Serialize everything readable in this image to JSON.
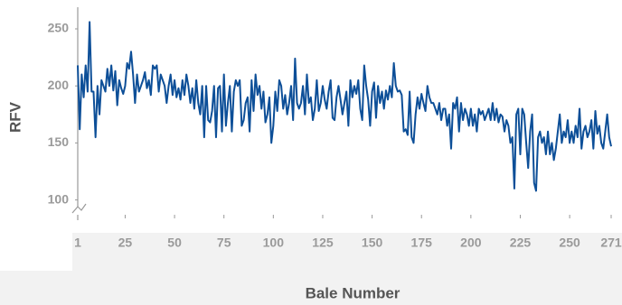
{
  "chart_data": {
    "type": "line",
    "x_label": "Bale Number",
    "y_label": "RFV",
    "xlim": [
      1,
      271
    ],
    "xticks": [
      1,
      25,
      50,
      75,
      100,
      125,
      150,
      175,
      200,
      225,
      250,
      271
    ],
    "ylim": [
      87,
      269
    ],
    "yticks": [
      100,
      150,
      200,
      250
    ],
    "color": "#0d4f98",
    "x": [
      1,
      2,
      3,
      4,
      5,
      6,
      7,
      8,
      9,
      10,
      11,
      12,
      13,
      14,
      15,
      16,
      17,
      18,
      19,
      20,
      21,
      22,
      23,
      24,
      25,
      26,
      27,
      28,
      29,
      30,
      31,
      32,
      33,
      34,
      35,
      36,
      37,
      38,
      39,
      40,
      41,
      42,
      43,
      44,
      45,
      46,
      47,
      48,
      49,
      50,
      51,
      52,
      53,
      54,
      55,
      56,
      57,
      58,
      59,
      60,
      61,
      62,
      63,
      64,
      65,
      66,
      67,
      68,
      69,
      70,
      71,
      72,
      73,
      74,
      75,
      76,
      77,
      78,
      79,
      80,
      81,
      82,
      83,
      84,
      85,
      86,
      87,
      88,
      89,
      90,
      91,
      92,
      93,
      94,
      95,
      96,
      97,
      98,
      99,
      100,
      101,
      102,
      103,
      104,
      105,
      106,
      107,
      108,
      109,
      110,
      111,
      112,
      113,
      114,
      115,
      116,
      117,
      118,
      119,
      120,
      121,
      122,
      123,
      124,
      125,
      126,
      127,
      128,
      129,
      130,
      131,
      132,
      133,
      134,
      135,
      136,
      137,
      138,
      139,
      140,
      141,
      142,
      143,
      144,
      145,
      146,
      147,
      148,
      149,
      150,
      151,
      152,
      153,
      154,
      155,
      156,
      157,
      158,
      159,
      160,
      161,
      162,
      163,
      164,
      165,
      166,
      167,
      168,
      169,
      170,
      171,
      172,
      173,
      174,
      175,
      176,
      177,
      178,
      179,
      180,
      181,
      182,
      183,
      184,
      185,
      186,
      187,
      188,
      189,
      190,
      191,
      192,
      193,
      194,
      195,
      196,
      197,
      198,
      199,
      200,
      201,
      202,
      203,
      204,
      205,
      206,
      207,
      208,
      209,
      210,
      211,
      212,
      213,
      214,
      215,
      216,
      217,
      218,
      219,
      220,
      221,
      222,
      223,
      224,
      225,
      226,
      227,
      228,
      229,
      230,
      231,
      232,
      233,
      234,
      235,
      236,
      237,
      238,
      239,
      240,
      241,
      242,
      243,
      244,
      245,
      246,
      247,
      248,
      249,
      250,
      251,
      252,
      253,
      254,
      255,
      256,
      257,
      258,
      259,
      260,
      261,
      262,
      263,
      264,
      265,
      266,
      267,
      268,
      269,
      270,
      271
    ],
    "values": [
      218,
      162,
      210,
      190,
      218,
      195,
      256,
      195,
      195,
      155,
      200,
      175,
      205,
      200,
      195,
      215,
      200,
      218,
      196,
      213,
      183,
      205,
      198,
      193,
      200,
      220,
      215,
      230,
      210,
      185,
      210,
      195,
      200,
      205,
      212,
      198,
      205,
      192,
      218,
      215,
      218,
      195,
      210,
      205,
      200,
      185,
      200,
      210,
      192,
      205,
      190,
      198,
      188,
      205,
      192,
      210,
      200,
      185,
      198,
      180,
      205,
      185,
      175,
      200,
      155,
      200,
      170,
      168,
      178,
      200,
      155,
      198,
      200,
      160,
      210,
      165,
      185,
      200,
      160,
      195,
      205,
      200,
      205,
      165,
      170,
      185,
      190,
      160,
      205,
      178,
      210,
      192,
      200,
      180,
      195,
      168,
      175,
      190,
      150,
      165,
      195,
      178,
      205,
      200,
      180,
      192,
      175,
      185,
      200,
      170,
      224,
      185,
      180,
      185,
      200,
      175,
      210,
      185,
      190,
      170,
      180,
      205,
      178,
      185,
      200,
      188,
      180,
      195,
      205,
      172,
      170,
      190,
      200,
      188,
      175,
      185,
      195,
      165,
      205,
      190,
      200,
      193,
      205,
      180,
      170,
      218,
      200,
      188,
      165,
      195,
      203,
      172,
      200,
      185,
      195,
      180,
      196,
      188,
      200,
      190,
      220,
      200,
      195,
      196,
      192,
      160,
      162,
      157,
      195,
      155,
      150,
      175,
      190,
      180,
      193,
      185,
      178,
      200,
      190,
      185,
      185,
      180,
      175,
      185,
      170,
      180,
      180,
      165,
      175,
      145,
      185,
      180,
      190,
      160,
      185,
      170,
      180,
      175,
      165,
      180,
      165,
      175,
      160,
      180,
      175,
      178,
      170,
      175,
      180,
      170,
      185,
      170,
      180,
      168,
      175,
      173,
      160,
      170,
      165,
      150,
      155,
      110,
      175,
      180,
      140,
      180,
      175,
      150,
      128,
      160,
      175,
      115,
      108,
      155,
      160,
      150,
      155,
      140,
      160,
      140,
      150,
      135,
      145,
      160,
      175,
      150,
      160,
      155,
      170,
      150,
      160,
      150,
      165,
      155,
      180,
      145,
      160,
      165,
      155,
      160,
      170,
      145,
      178,
      158,
      165,
      150,
      145,
      160,
      175,
      155,
      147
    ]
  }
}
